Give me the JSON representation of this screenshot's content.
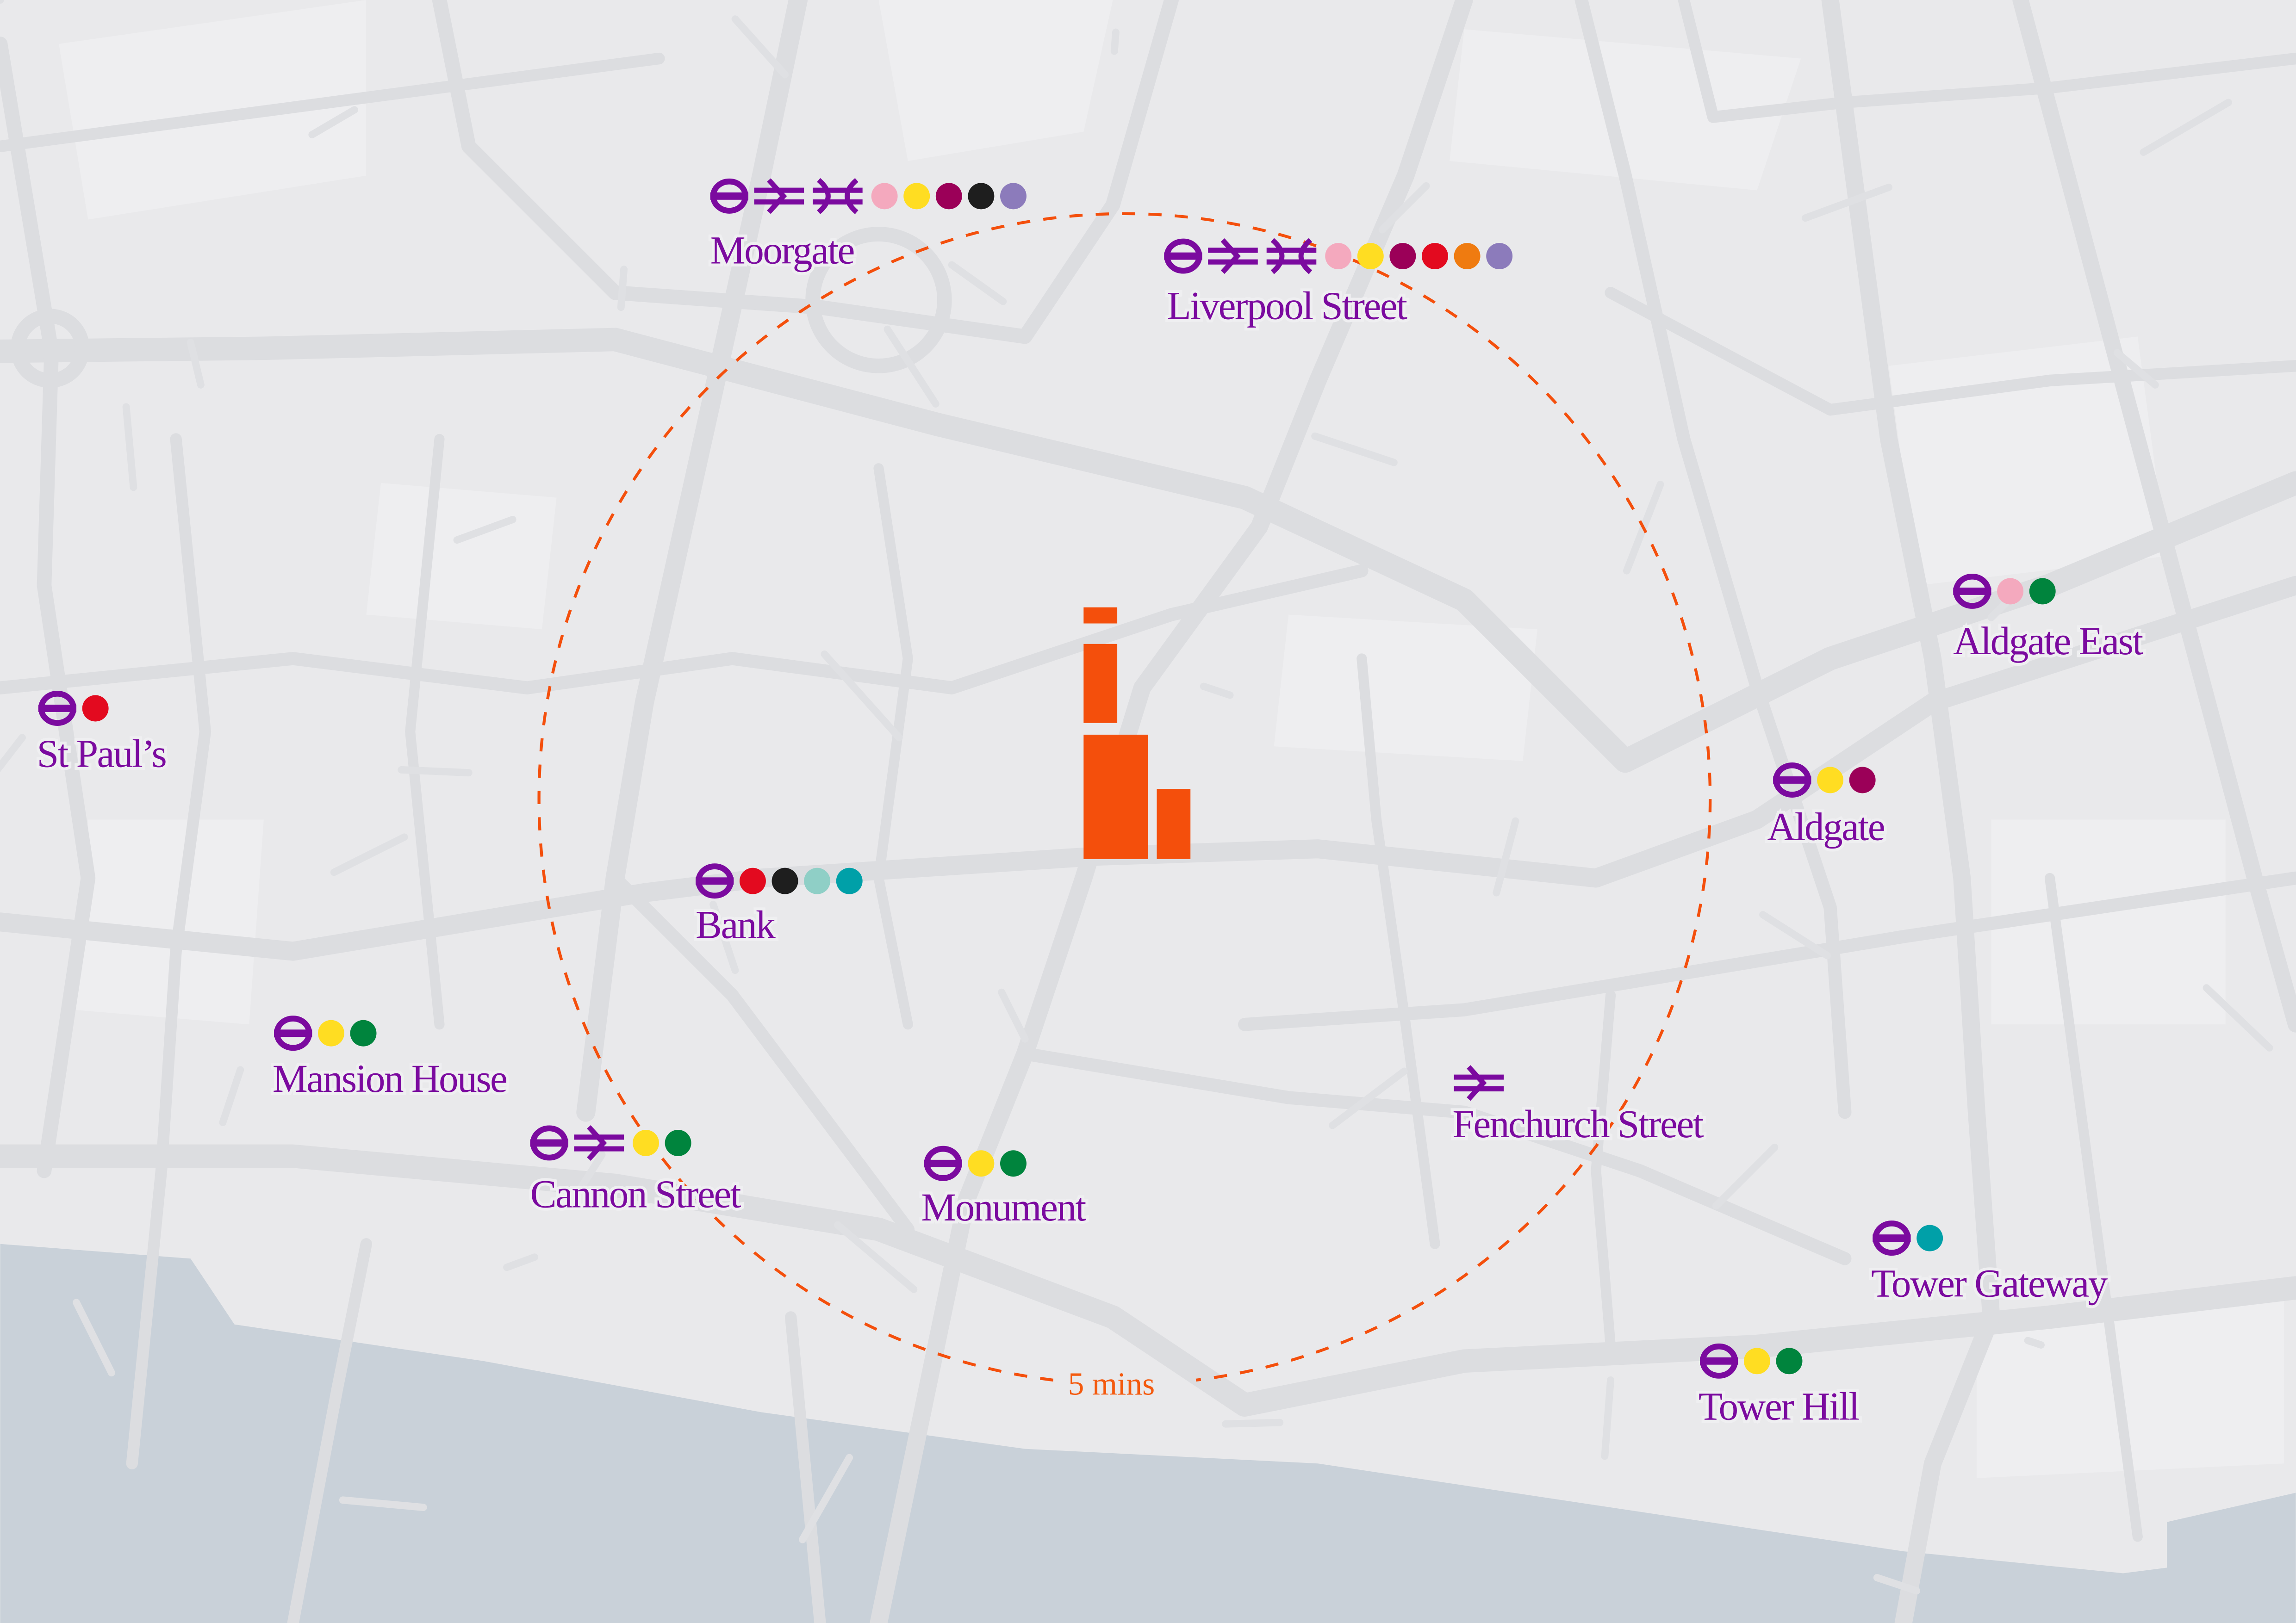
{
  "colors": {
    "background": "#e9e9eb",
    "road": "#dcdde0",
    "river": "#c9d1d9",
    "label": "#7b0a9f",
    "accent": "#f44f0c"
  },
  "walk_radius": {
    "label": "5 mins"
  },
  "logo": {
    "icon": "building-bars-logo"
  },
  "line_colors": {
    "pink": "#f4a9be",
    "yellow": "#ffdd22",
    "maroon": "#9b0058",
    "black": "#1e1e1e",
    "lilac": "#8c7bbb",
    "red": "#e30a1f",
    "orange": "#ef7b10",
    "green": "#00843d",
    "light-teal": "#8fcfc6",
    "teal": "#00a0a8"
  },
  "stations": [
    {
      "name": "Moorgate",
      "modes": [
        "underground",
        "national-rail",
        "elizabeth-line"
      ],
      "lines": [
        "pink",
        "yellow",
        "maroon",
        "black",
        "lilac"
      ]
    },
    {
      "name": "Liverpool Street",
      "modes": [
        "underground",
        "national-rail",
        "elizabeth-line"
      ],
      "lines": [
        "pink",
        "yellow",
        "maroon",
        "red",
        "orange",
        "lilac"
      ]
    },
    {
      "name": "St Paul’s",
      "modes": [
        "underground"
      ],
      "lines": [
        "red"
      ]
    },
    {
      "name": "Aldgate East",
      "modes": [
        "underground"
      ],
      "lines": [
        "pink",
        "green"
      ]
    },
    {
      "name": "Aldgate",
      "modes": [
        "underground"
      ],
      "lines": [
        "yellow",
        "maroon"
      ]
    },
    {
      "name": "Bank",
      "modes": [
        "underground"
      ],
      "lines": [
        "red",
        "black",
        "light-teal",
        "teal"
      ]
    },
    {
      "name": "Mansion House",
      "modes": [
        "underground"
      ],
      "lines": [
        "yellow",
        "green"
      ]
    },
    {
      "name": "Cannon Street",
      "modes": [
        "underground",
        "national-rail"
      ],
      "lines": [
        "yellow",
        "green"
      ]
    },
    {
      "name": "Monument",
      "modes": [
        "underground"
      ],
      "lines": [
        "yellow",
        "green"
      ]
    },
    {
      "name": "Fenchurch Street",
      "modes": [
        "national-rail"
      ],
      "lines": []
    },
    {
      "name": "Tower Gateway",
      "modes": [
        "underground"
      ],
      "lines": [
        "teal"
      ]
    },
    {
      "name": "Tower Hill",
      "modes": [
        "underground"
      ],
      "lines": [
        "yellow",
        "green"
      ]
    }
  ]
}
